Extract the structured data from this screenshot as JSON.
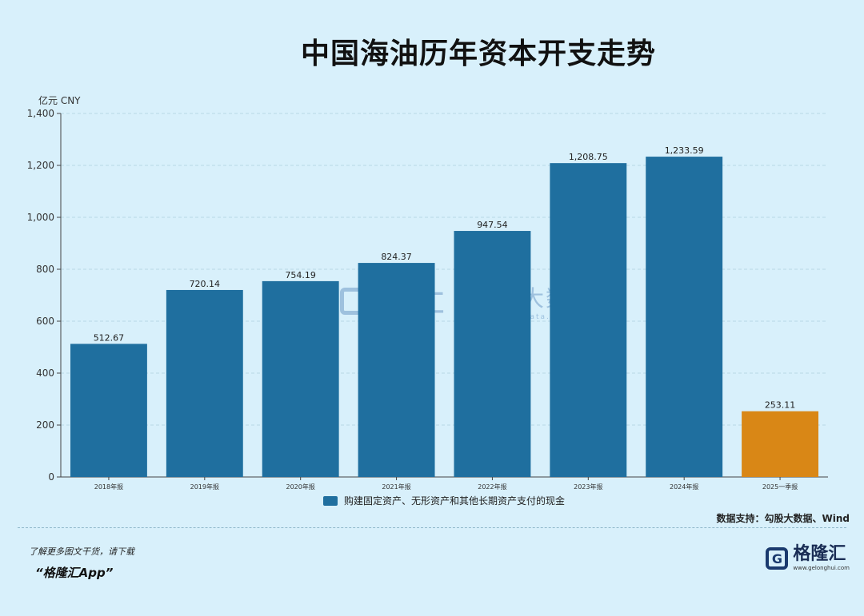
{
  "title": "中国海油历年资本开支走势",
  "unit_label": "亿元  CNY",
  "legend_label": "购建固定资产、无形资产和其他长期资产支付的现金",
  "source": "数据支持：勾股大数据、Wind",
  "promo_line1": "了解更多图文干货，请下载",
  "promo_line2": "“格隆汇App”",
  "brand": {
    "name": "格隆汇",
    "url": "www.gelonghui.com"
  },
  "watermark": {
    "left_text": "格隆汇",
    "right_text": "勾股大数据",
    "url": "www.gogudata.com"
  },
  "colors": {
    "background": "#d8f0fb",
    "bar_main": "#1f6f9f",
    "bar_highlight": "#d98716",
    "grid": "#b9d7e4"
  },
  "chart_data": {
    "type": "bar",
    "title": "中国海油历年资本开支走势",
    "ylabel": "亿元  CNY",
    "xlabel": "",
    "ylim": [
      0,
      1400
    ],
    "yticks": [
      0,
      200,
      400,
      600,
      800,
      1000,
      1200,
      1400
    ],
    "ytick_labels": [
      "0",
      "200",
      "400",
      "600",
      "800",
      "1,000",
      "1,200",
      "1,400"
    ],
    "grid": true,
    "legend_position": "bottom",
    "categories": [
      "2018年报",
      "2019年报",
      "2020年报",
      "2021年报",
      "2022年报",
      "2023年报",
      "2024年报",
      "2025一季报"
    ],
    "series": [
      {
        "name": "购建固定资产、无形资产和其他长期资产支付的现金",
        "values": [
          512.67,
          720.14,
          754.19,
          824.37,
          947.54,
          1208.75,
          1233.59,
          253.11
        ],
        "value_labels": [
          "512.67",
          "720.14",
          "754.19",
          "824.37",
          "947.54",
          "1,208.75",
          "1,233.59",
          "253.11"
        ],
        "colors": [
          "#1f6f9f",
          "#1f6f9f",
          "#1f6f9f",
          "#1f6f9f",
          "#1f6f9f",
          "#1f6f9f",
          "#1f6f9f",
          "#d98716"
        ]
      }
    ]
  }
}
